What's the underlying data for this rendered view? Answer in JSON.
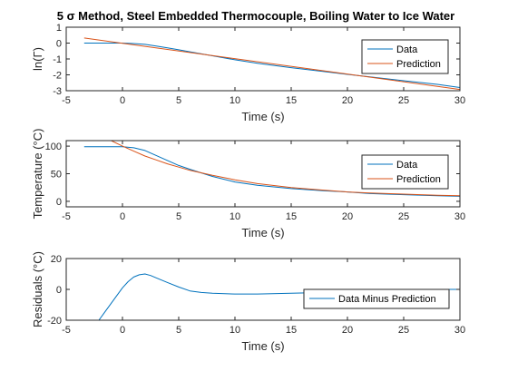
{
  "figure": {
    "title": "5 σ Method, Steel Embedded Thermocouple, Boiling Water to Ice Water"
  },
  "colors": {
    "data": "#0072BD",
    "prediction": "#D95319",
    "axis": "#262626"
  },
  "chart_data": [
    {
      "type": "line",
      "title": "5 σ Method, Steel Embedded Thermocouple, Boiling Water to Ice Water",
      "xlabel": "Time (s)",
      "ylabel": "ln(Γ)",
      "xlim": [
        -5,
        30
      ],
      "ylim": [
        -3,
        1
      ],
      "xticks": [
        "-5",
        "0",
        "5",
        "10",
        "15",
        "20",
        "25",
        "30"
      ],
      "yticks": [
        "-3",
        "-2",
        "-1",
        "0",
        "1"
      ],
      "legend_position": "top-right",
      "series": [
        {
          "name": "Data",
          "x": [
            -3.4,
            -2,
            -1,
            0,
            1,
            2,
            3,
            4,
            5,
            6,
            8,
            10,
            12,
            15,
            18,
            20,
            22,
            25,
            28,
            30
          ],
          "y": [
            0.0,
            0.0,
            0.0,
            0.0,
            -0.03,
            -0.08,
            -0.18,
            -0.3,
            -0.42,
            -0.55,
            -0.8,
            -1.05,
            -1.27,
            -1.55,
            -1.8,
            -1.97,
            -2.13,
            -2.37,
            -2.6,
            -2.8
          ]
        },
        {
          "name": "Prediction",
          "x": [
            -3.4,
            30
          ],
          "y": [
            0.32,
            -2.92
          ]
        }
      ]
    },
    {
      "type": "line",
      "xlabel": "Time (s)",
      "ylabel": "Temperature (°C)",
      "xlim": [
        -5,
        30
      ],
      "ylim": [
        -10,
        110
      ],
      "xticks": [
        "-5",
        "0",
        "5",
        "10",
        "15",
        "20",
        "25",
        "30"
      ],
      "yticks": [
        "0",
        "50",
        "100"
      ],
      "legend_position": "top-right",
      "series": [
        {
          "name": "Data",
          "x": [
            -3.4,
            -2,
            -1,
            0,
            1,
            2,
            3,
            4,
            5,
            6,
            8,
            10,
            12,
            15,
            18,
            20,
            22,
            25,
            28,
            30
          ],
          "y": [
            99,
            99,
            99,
            99,
            97,
            92,
            83,
            74,
            65,
            58,
            45,
            35,
            29,
            23,
            19,
            17,
            14,
            12,
            10,
            9
          ]
        },
        {
          "name": "Prediction",
          "x": [
            -1,
            0,
            1,
            2,
            3,
            4,
            5,
            6,
            8,
            10,
            12,
            15,
            18,
            20,
            22,
            25,
            28,
            30
          ],
          "y": [
            110,
            100,
            91,
            82,
            75,
            68,
            62,
            56,
            47,
            39,
            32,
            25,
            20,
            17,
            15,
            13,
            11,
            10
          ]
        }
      ]
    },
    {
      "type": "line",
      "xlabel": "Time (s)",
      "ylabel": "Residuals (°C)",
      "xlim": [
        -5,
        30
      ],
      "ylim": [
        -20,
        20
      ],
      "xticks": [
        "-5",
        "0",
        "5",
        "10",
        "15",
        "20",
        "25",
        "30"
      ],
      "yticks": [
        "-20",
        "0",
        "20"
      ],
      "legend_position": "right",
      "series": [
        {
          "name": "Data Minus Prediction",
          "x": [
            -2.1,
            -1.5,
            -1,
            -0.5,
            0,
            0.5,
            1,
            1.5,
            2,
            2.5,
            3,
            4,
            5,
            6,
            7,
            8,
            10,
            12,
            15,
            18,
            20,
            22,
            25,
            28,
            30
          ],
          "y": [
            -20,
            -14,
            -9,
            -4,
            1,
            5,
            8,
            9.5,
            10,
            9,
            7.5,
            4.5,
            1.5,
            -1,
            -2,
            -2.5,
            -3,
            -3,
            -2.5,
            -2,
            -1.5,
            -1,
            -0.5,
            0,
            0
          ]
        }
      ]
    }
  ]
}
